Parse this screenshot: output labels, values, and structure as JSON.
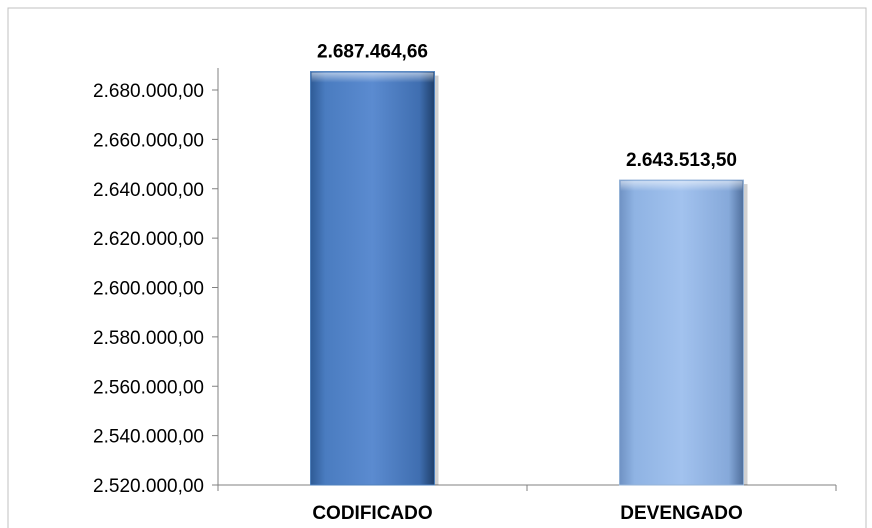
{
  "chart_data": {
    "type": "bar",
    "title": "",
    "xlabel": "",
    "ylabel": "",
    "categories": [
      "CODIFICADO",
      "DEVENGADO"
    ],
    "values": [
      2687464.66,
      2643513.5
    ],
    "value_labels": [
      "2.687.464,66",
      "2.643.513,50"
    ],
    "ylim": [
      2520000,
      2680000
    ],
    "yticks": [
      2520000,
      2540000,
      2560000,
      2580000,
      2600000,
      2620000,
      2640000,
      2660000,
      2680000
    ],
    "ytick_labels": [
      "2.520.000,00",
      "2.540.000,00",
      "2.560.000,00",
      "2.580.000,00",
      "2.600.000,00",
      "2.620.000,00",
      "2.640.000,00",
      "2.660.000,00",
      "2.680.000,00"
    ],
    "grid": false,
    "legend": "none",
    "bar_colors": [
      "#4f81bd",
      "#95b3d7"
    ],
    "frame_color": "#c0c0c0",
    "axis_color": "#808080"
  }
}
